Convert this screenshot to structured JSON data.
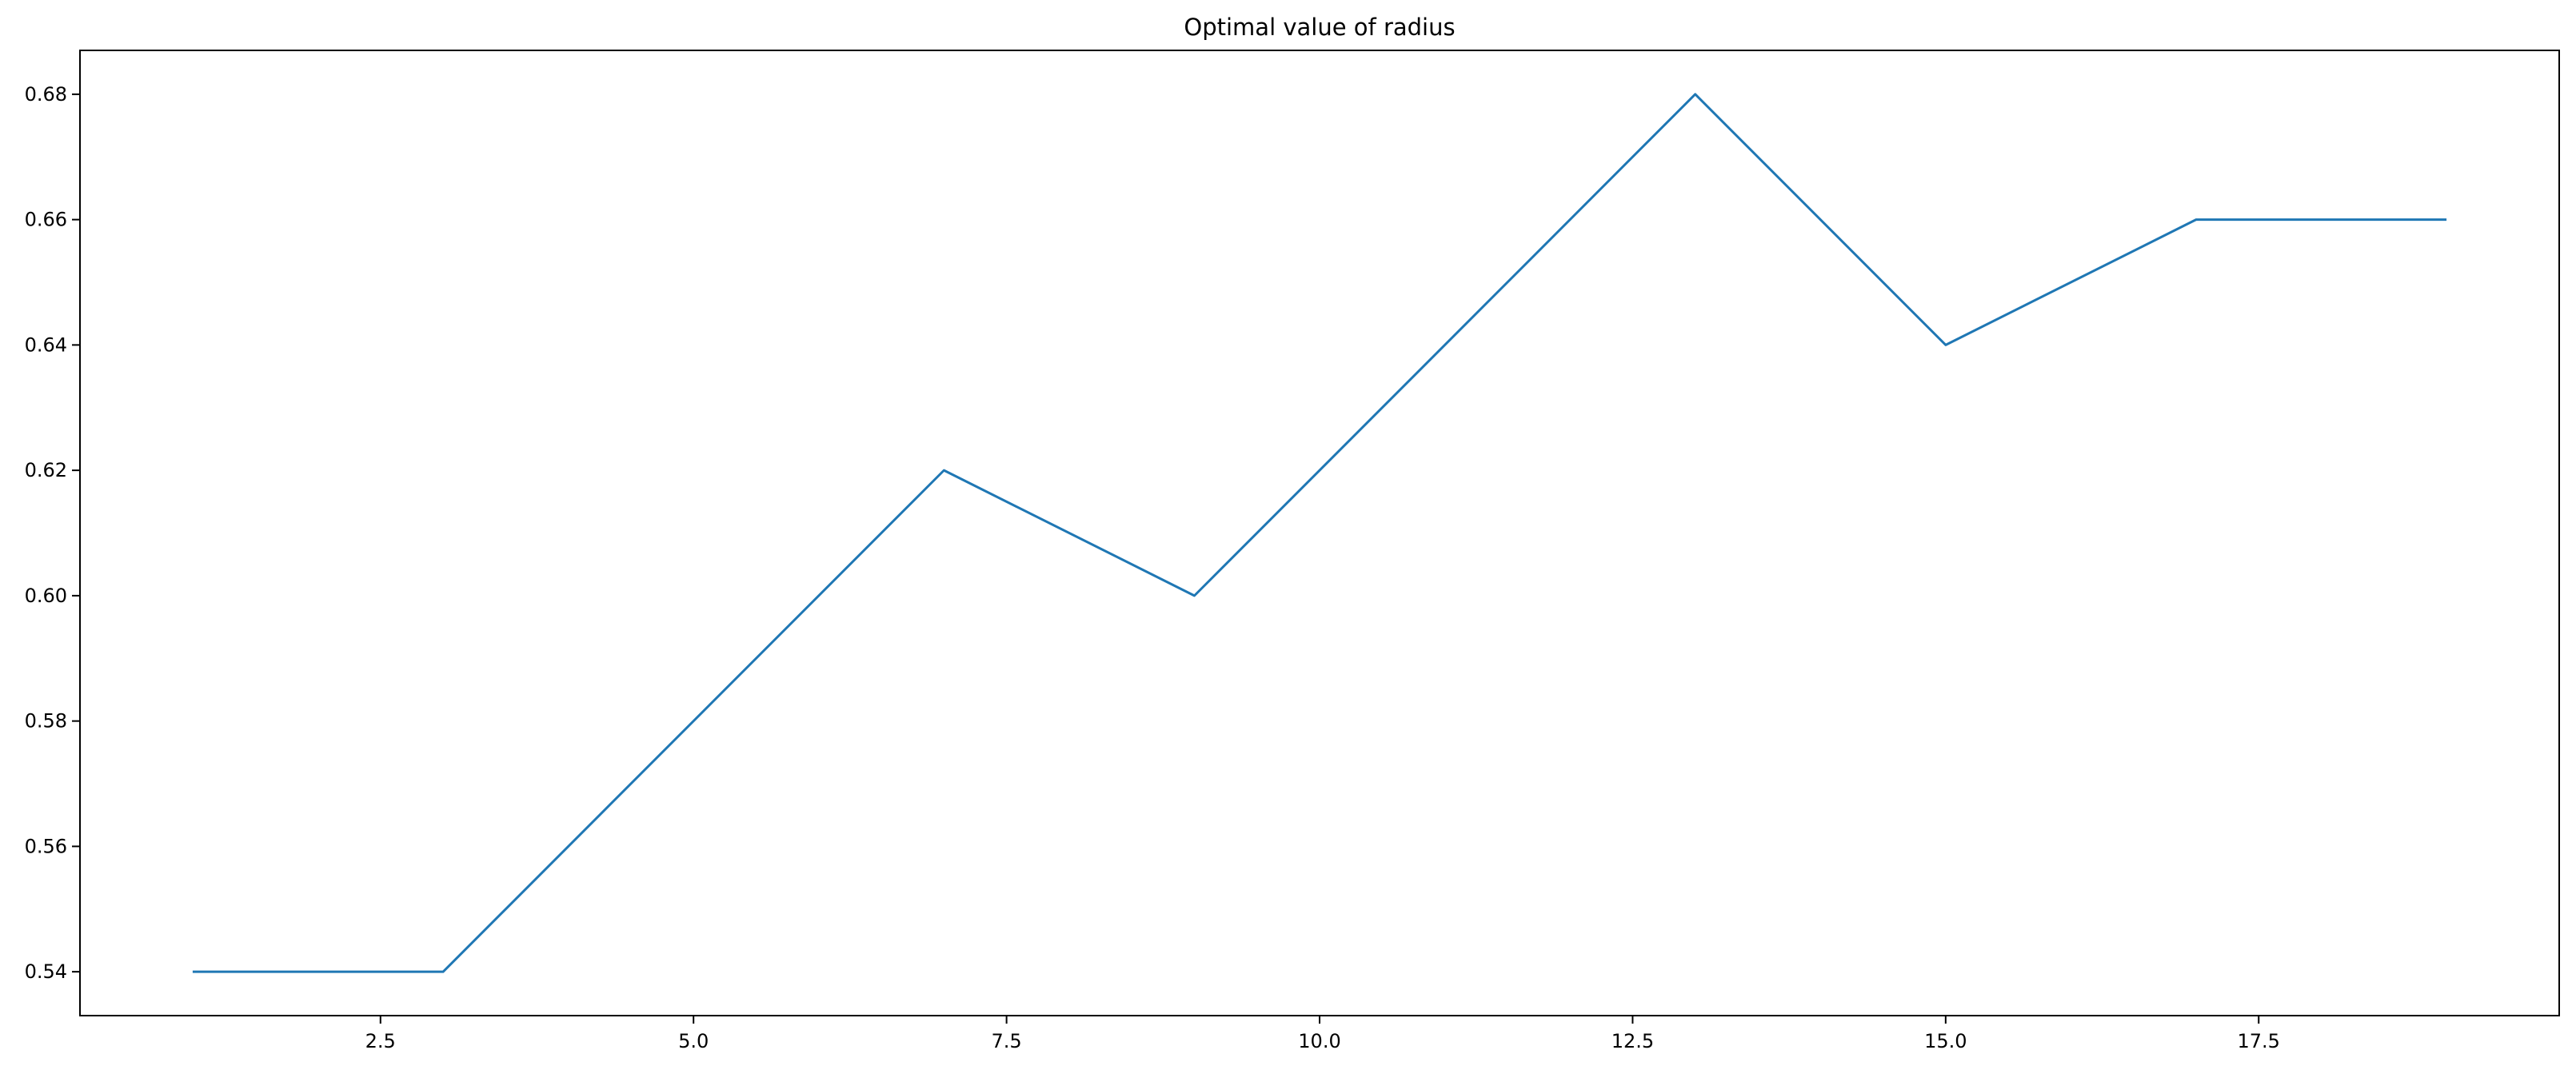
{
  "chart_data": {
    "type": "line",
    "title": "Optimal value of radius",
    "xlabel": "",
    "ylabel": "",
    "xlim": [
      0.1,
      19.9
    ],
    "ylim": [
      0.533,
      0.687
    ],
    "grid": false,
    "x_ticks": [
      2.5,
      5.0,
      7.5,
      10.0,
      12.5,
      15.0,
      17.5
    ],
    "x_tick_labels": [
      "2.5",
      "5.0",
      "7.5",
      "10.0",
      "12.5",
      "15.0",
      "17.5"
    ],
    "y_ticks": [
      0.54,
      0.56,
      0.58,
      0.6,
      0.62,
      0.64,
      0.66,
      0.68
    ],
    "y_tick_labels": [
      "0.54",
      "0.56",
      "0.58",
      "0.60",
      "0.62",
      "0.64",
      "0.66",
      "0.68"
    ],
    "series": [
      {
        "color": "#1f77b4",
        "x": [
          1,
          3,
          7,
          9,
          13,
          15,
          17,
          19
        ],
        "y": [
          0.54,
          0.54,
          0.62,
          0.6,
          0.68,
          0.64,
          0.66,
          0.66
        ]
      }
    ]
  }
}
